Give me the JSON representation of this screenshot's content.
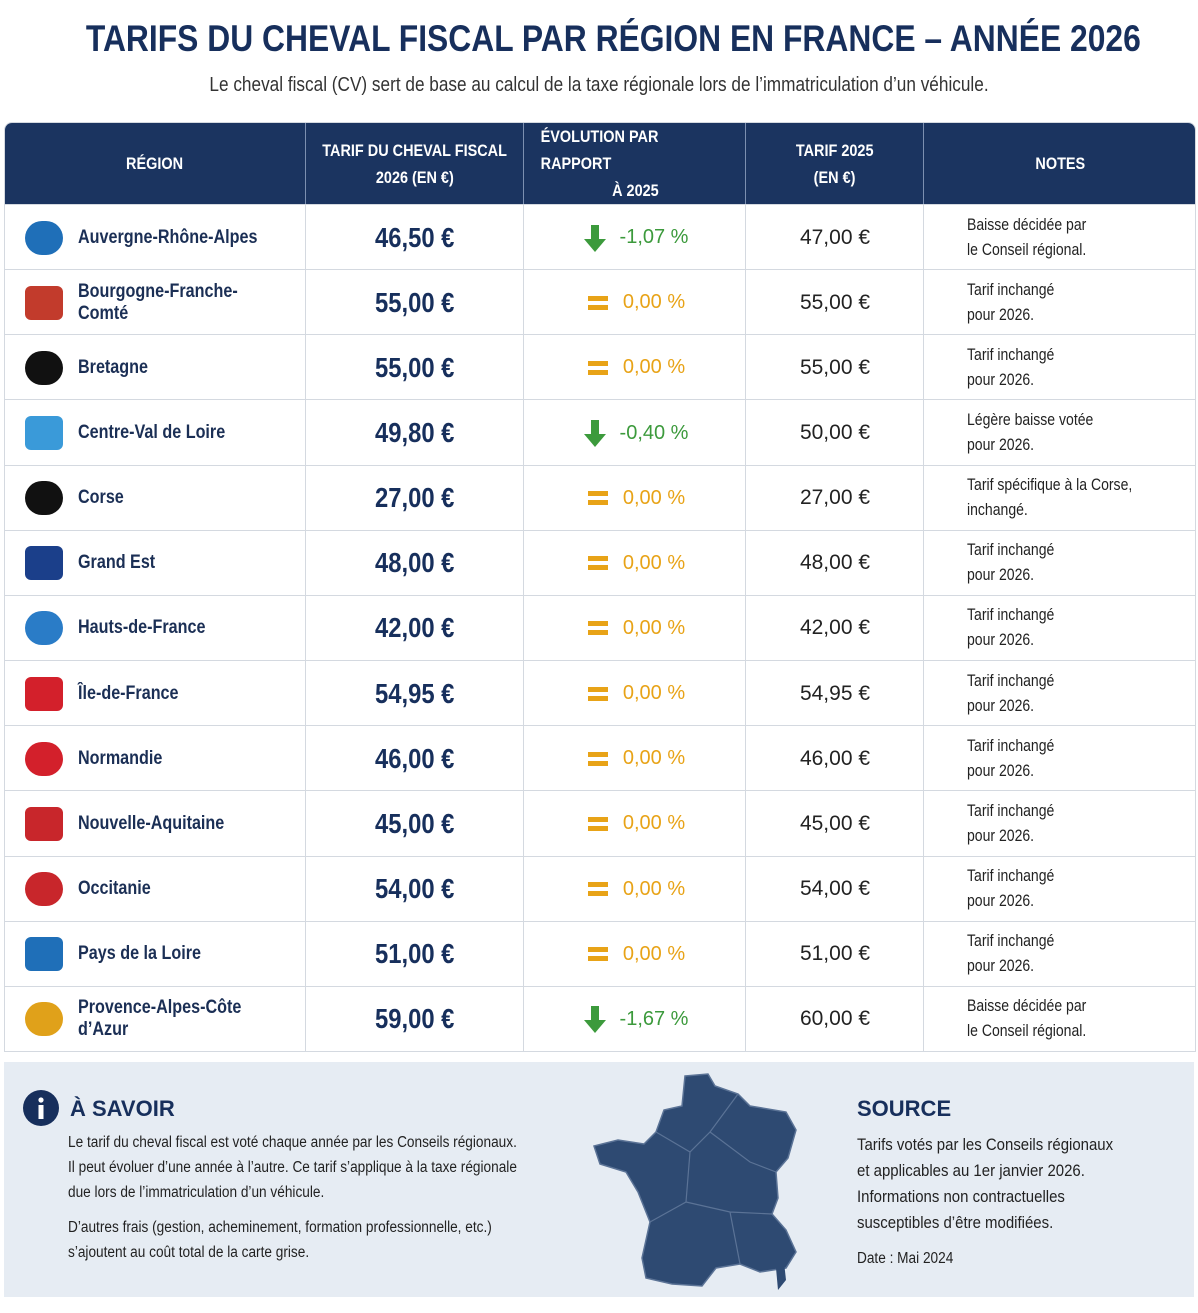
{
  "header": {
    "title": "TARIFS DU CHEVAL FISCAL PAR RÉGION EN FRANCE – ANNÉE 2026",
    "subtitle": "Le cheval fiscal (CV) sert de base au calcul de la taxe régionale lors de l’immatriculation d’un véhicule."
  },
  "table": {
    "columns": [
      [
        "RÉGION"
      ],
      [
        "TARIF DU CHEVAL FISCAL",
        "2026 (EN €)"
      ],
      [
        "ÉVOLUTION PAR RAPPORT",
        "À 2025"
      ],
      [
        "TARIF 2025",
        "(EN €)"
      ],
      [
        "NOTES"
      ]
    ],
    "rows": [
      {
        "region": "Auvergne-Rhône-Alpes",
        "tarif_2026": "46,50 €",
        "evolution": "-1,07 %",
        "tarif_2025": "47,00 €",
        "notes": [
          "Baisse décidée par",
          "le Conseil régional."
        ]
      },
      {
        "region": "Bourgogne-Franche-Comté",
        "tarif_2026": "55,00 €",
        "evolution": "0,00 %",
        "tarif_2025": "55,00 €",
        "notes": [
          "Tarif inchangé",
          "pour 2026."
        ]
      },
      {
        "region": "Bretagne",
        "tarif_2026": "55,00 €",
        "evolution": "0,00 %",
        "tarif_2025": "55,00 €",
        "notes": [
          "Tarif inchangé",
          "pour 2026."
        ]
      },
      {
        "region": "Centre-Val de Loire",
        "tarif_2026": "49,80 €",
        "evolution": "-0,40 %",
        "tarif_2025": "50,00 €",
        "notes": [
          "Légère baisse votée",
          "pour 2026."
        ]
      },
      {
        "region": "Corse",
        "tarif_2026": "27,00 €",
        "evolution": "0,00 %",
        "tarif_2025": "27,00 €",
        "notes": [
          "Tarif spécifique à la Corse,",
          "inchangé."
        ]
      },
      {
        "region": "Grand Est",
        "tarif_2026": "48,00 €",
        "evolution": "0,00 %",
        "tarif_2025": "48,00 €",
        "notes": [
          "Tarif inchangé",
          "pour 2026."
        ]
      },
      {
        "region": "Hauts-de-France",
        "tarif_2026": "42,00 €",
        "evolution": "0,00 %",
        "tarif_2025": "42,00 €",
        "notes": [
          "Tarif inchangé",
          "pour 2026."
        ]
      },
      {
        "region": "Île-de-France",
        "tarif_2026": "54,95 €",
        "evolution": "0,00 %",
        "tarif_2025": "54,95 €",
        "notes": [
          "Tarif inchangé",
          "pour 2026."
        ]
      },
      {
        "region": "Normandie",
        "tarif_2026": "46,00 €",
        "evolution": "0,00 %",
        "tarif_2025": "46,00 €",
        "notes": [
          "Tarif inchangé",
          "pour 2026."
        ]
      },
      {
        "region": "Nouvelle-Aquitaine",
        "tarif_2026": "45,00 €",
        "evolution": "0,00 %",
        "tarif_2025": "45,00 €",
        "notes": [
          "Tarif inchangé",
          "pour 2026."
        ]
      },
      {
        "region": "Occitanie",
        "tarif_2026": "54,00 €",
        "evolution": "0,00 %",
        "tarif_2025": "54,00 €",
        "notes": [
          "Tarif inchangé",
          "pour 2026."
        ]
      },
      {
        "region": "Pays de la Loire",
        "tarif_2026": "51,00 €",
        "evolution": "0,00 %",
        "tarif_2025": "51,00 €",
        "notes": [
          "Tarif inchangé",
          "pour 2026."
        ]
      },
      {
        "region": "Provence-Alpes-Côte d’Azur",
        "tarif_2026": "59,00 €",
        "evolution": "-1,67 %",
        "tarif_2025": "60,00 €",
        "notes": [
          "Baisse décidée par",
          "le Conseil régional."
        ]
      }
    ]
  },
  "info": {
    "title": "À SAVOIR",
    "paragraphs": [
      [
        "Le tarif du cheval fiscal est voté chaque année par les Conseils régionaux.",
        "Il peut évoluer d’une année à l’autre. Ce tarif s’applique à la taxe régionale",
        "due lors de l’immatriculation d’un véhicule."
      ],
      [
        "D’autres frais (gestion, acheminement, formation professionnelle, etc.)",
        "s’ajoutent au coût total de la carte grise."
      ]
    ]
  },
  "source": {
    "title": "SOURCE",
    "lines": [
      "Tarifs votés par les Conseils régionaux",
      "et applicables au 1er janvier 2026.",
      "Informations non contractuelles",
      "susceptibles d’être modifiées."
    ],
    "date": "Date : Mai 2024"
  }
}
